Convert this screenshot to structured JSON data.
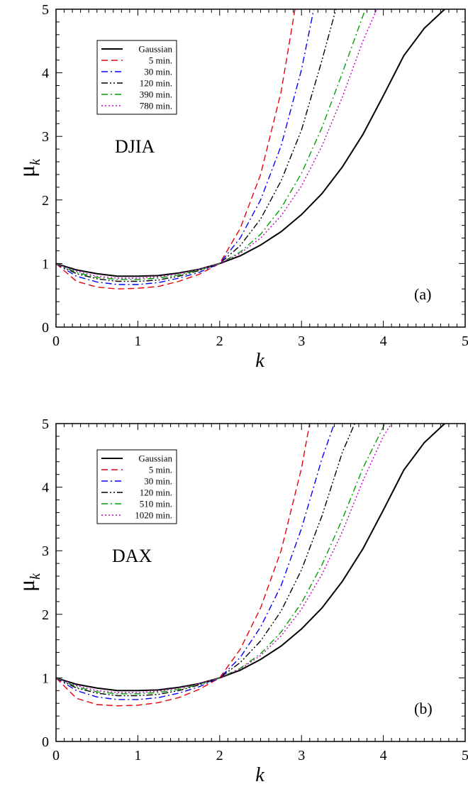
{
  "chart_data": [
    {
      "type": "line",
      "panel_label": "(a)",
      "annotation": "DJIA",
      "xlabel": "k",
      "ylabel": "μ",
      "ylabel_subscript": "k",
      "xlim": [
        0,
        5
      ],
      "ylim": [
        0,
        5
      ],
      "xticks": [
        "0",
        "1",
        "2",
        "3",
        "4",
        "5"
      ],
      "yticks": [
        "0",
        "1",
        "2",
        "3",
        "4",
        "5"
      ],
      "grid": false,
      "legend_position": "top-left",
      "series": [
        {
          "name": "Gaussian",
          "color": "#000000",
          "dash": "solid",
          "x": [
            0,
            0.25,
            0.5,
            0.75,
            1.0,
            1.25,
            1.5,
            1.75,
            2.0,
            2.25,
            2.5,
            2.75,
            3.0,
            3.25,
            3.5,
            3.75,
            4.0,
            4.25,
            4.5,
            4.75
          ],
          "y": [
            1.0,
            0.9,
            0.84,
            0.8,
            0.8,
            0.81,
            0.85,
            0.91,
            1.0,
            1.12,
            1.29,
            1.5,
            1.77,
            2.1,
            2.52,
            3.03,
            3.64,
            4.27,
            4.7,
            5.0
          ]
        },
        {
          "name": "5 min.",
          "color": "#e8000b",
          "dash": "dashed",
          "x": [
            0,
            0.25,
            0.5,
            0.75,
            1.0,
            1.25,
            1.5,
            1.75,
            2.0,
            2.25,
            2.5,
            2.75,
            2.92
          ],
          "y": [
            1.0,
            0.72,
            0.63,
            0.6,
            0.61,
            0.64,
            0.72,
            0.83,
            1.0,
            1.55,
            2.4,
            3.7,
            5.0
          ]
        },
        {
          "name": "30 min.",
          "color": "#0000ff",
          "dash": "dashdot",
          "x": [
            0,
            0.25,
            0.5,
            0.75,
            1.0,
            1.25,
            1.5,
            1.75,
            2.0,
            2.25,
            2.5,
            2.75,
            3.0,
            3.15
          ],
          "y": [
            1.0,
            0.8,
            0.71,
            0.67,
            0.67,
            0.7,
            0.77,
            0.86,
            1.0,
            1.4,
            2.0,
            2.85,
            4.05,
            5.0
          ]
        },
        {
          "name": "120 min.",
          "color": "#000000",
          "dash": "dashdotdot",
          "x": [
            0,
            0.25,
            0.5,
            0.75,
            1.0,
            1.25,
            1.5,
            1.75,
            2.0,
            2.25,
            2.5,
            2.75,
            3.0,
            3.25,
            3.42
          ],
          "y": [
            1.0,
            0.84,
            0.76,
            0.72,
            0.72,
            0.74,
            0.8,
            0.89,
            1.0,
            1.28,
            1.7,
            2.3,
            3.1,
            4.2,
            5.0
          ]
        },
        {
          "name": "390 min.",
          "color": "#00a000",
          "dash": "dashdot",
          "x": [
            0,
            0.25,
            0.5,
            0.75,
            1.0,
            1.25,
            1.5,
            1.75,
            2.0,
            2.25,
            2.5,
            2.75,
            3.0,
            3.25,
            3.5,
            3.78
          ],
          "y": [
            1.0,
            0.86,
            0.78,
            0.75,
            0.75,
            0.77,
            0.82,
            0.9,
            1.0,
            1.18,
            1.46,
            1.87,
            2.42,
            3.14,
            4.0,
            5.0
          ]
        },
        {
          "name": "780 min.",
          "color": "#c000c0",
          "dash": "dotted",
          "x": [
            0,
            0.25,
            0.5,
            0.75,
            1.0,
            1.25,
            1.5,
            1.75,
            2.0,
            2.25,
            2.5,
            2.75,
            3.0,
            3.25,
            3.5,
            3.75,
            3.92
          ],
          "y": [
            1.0,
            0.88,
            0.8,
            0.77,
            0.77,
            0.79,
            0.84,
            0.91,
            1.0,
            1.16,
            1.4,
            1.75,
            2.22,
            2.85,
            3.62,
            4.5,
            5.0
          ]
        }
      ]
    },
    {
      "type": "line",
      "panel_label": "(b)",
      "annotation": "DAX",
      "xlabel": "k",
      "ylabel": "μ",
      "ylabel_subscript": "k",
      "xlim": [
        0,
        5
      ],
      "ylim": [
        0,
        5
      ],
      "xticks": [
        "0",
        "1",
        "2",
        "3",
        "4",
        "5"
      ],
      "yticks": [
        "0",
        "1",
        "2",
        "3",
        "4",
        "5"
      ],
      "grid": false,
      "legend_position": "top-left",
      "series": [
        {
          "name": "Gaussian",
          "color": "#000000",
          "dash": "solid",
          "x": [
            0,
            0.25,
            0.5,
            0.75,
            1.0,
            1.25,
            1.5,
            1.75,
            2.0,
            2.25,
            2.5,
            2.75,
            3.0,
            3.25,
            3.5,
            3.75,
            4.0,
            4.25,
            4.5,
            4.75
          ],
          "y": [
            1.0,
            0.9,
            0.84,
            0.8,
            0.8,
            0.81,
            0.85,
            0.91,
            1.0,
            1.12,
            1.29,
            1.5,
            1.77,
            2.1,
            2.52,
            3.03,
            3.64,
            4.27,
            4.7,
            5.0
          ]
        },
        {
          "name": "5 min.",
          "color": "#e8000b",
          "dash": "dashed",
          "x": [
            0,
            0.25,
            0.5,
            0.75,
            1.0,
            1.25,
            1.5,
            1.75,
            2.0,
            2.25,
            2.5,
            2.75,
            3.0,
            3.1
          ],
          "y": [
            1.0,
            0.68,
            0.58,
            0.56,
            0.57,
            0.61,
            0.69,
            0.82,
            1.0,
            1.45,
            2.1,
            3.0,
            4.3,
            5.0
          ]
        },
        {
          "name": "30 min.",
          "color": "#0000ff",
          "dash": "dashdot",
          "x": [
            0,
            0.25,
            0.5,
            0.75,
            1.0,
            1.25,
            1.5,
            1.75,
            2.0,
            2.25,
            2.5,
            2.75,
            3.0,
            3.25,
            3.4
          ],
          "y": [
            1.0,
            0.8,
            0.7,
            0.66,
            0.66,
            0.69,
            0.76,
            0.86,
            1.0,
            1.32,
            1.8,
            2.45,
            3.35,
            4.45,
            5.0
          ]
        },
        {
          "name": "120 min.",
          "color": "#000000",
          "dash": "dashdotdot",
          "x": [
            0,
            0.25,
            0.5,
            0.75,
            1.0,
            1.25,
            1.5,
            1.75,
            2.0,
            2.25,
            2.5,
            2.75,
            3.0,
            3.25,
            3.5,
            3.65
          ],
          "y": [
            1.0,
            0.84,
            0.76,
            0.72,
            0.72,
            0.74,
            0.8,
            0.89,
            1.0,
            1.24,
            1.58,
            2.05,
            2.7,
            3.55,
            4.55,
            5.0
          ]
        },
        {
          "name": "510 min.",
          "color": "#00a000",
          "dash": "dashdot",
          "x": [
            0,
            0.25,
            0.5,
            0.75,
            1.0,
            1.25,
            1.5,
            1.75,
            2.0,
            2.25,
            2.5,
            2.75,
            3.0,
            3.25,
            3.5,
            3.75,
            4.02
          ],
          "y": [
            1.0,
            0.86,
            0.78,
            0.75,
            0.75,
            0.77,
            0.82,
            0.9,
            1.0,
            1.15,
            1.38,
            1.72,
            2.18,
            2.78,
            3.5,
            4.3,
            5.0
          ]
        },
        {
          "name": "1020 min.",
          "color": "#c000c0",
          "dash": "dotted",
          "x": [
            0,
            0.25,
            0.5,
            0.75,
            1.0,
            1.25,
            1.5,
            1.75,
            2.0,
            2.25,
            2.5,
            2.75,
            3.0,
            3.25,
            3.5,
            3.75,
            4.0,
            4.1
          ],
          "y": [
            1.0,
            0.88,
            0.8,
            0.77,
            0.77,
            0.79,
            0.84,
            0.91,
            1.0,
            1.14,
            1.35,
            1.66,
            2.08,
            2.63,
            3.3,
            4.1,
            4.8,
            5.0
          ]
        }
      ]
    }
  ]
}
